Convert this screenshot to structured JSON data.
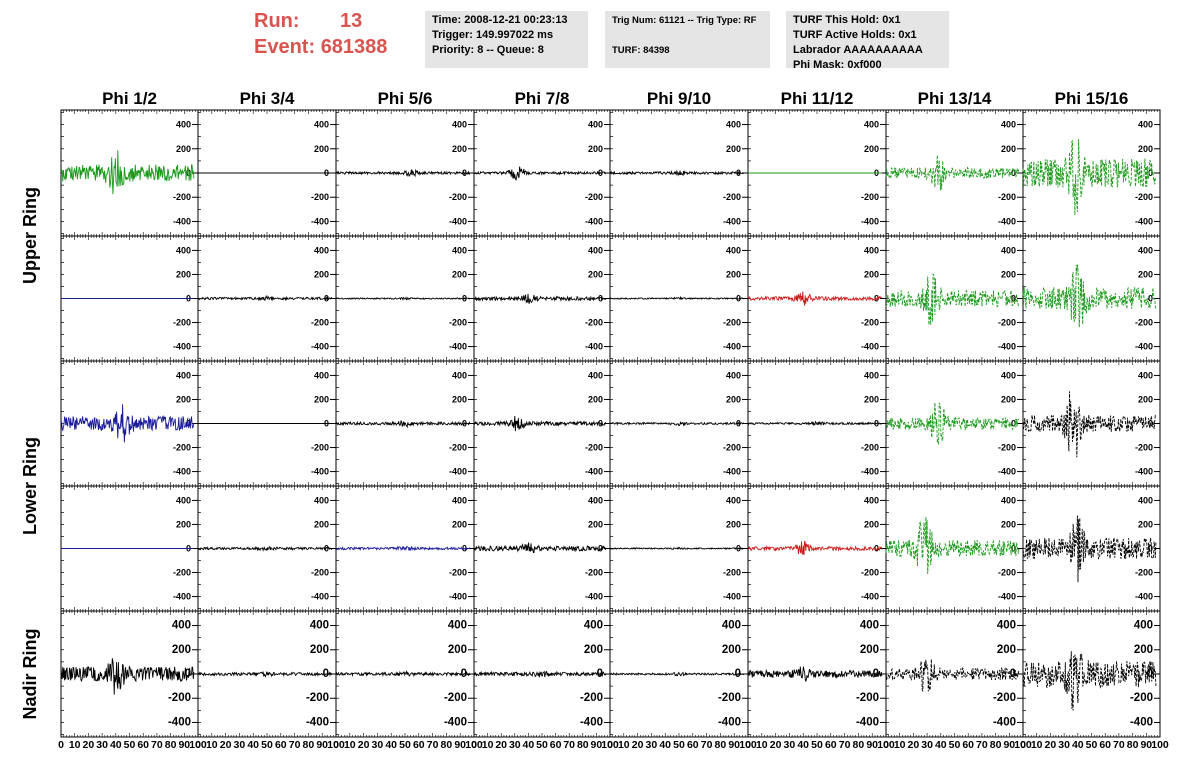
{
  "header": {
    "run_label": "Run:",
    "run_value": "13",
    "event_label": "Event:",
    "event_value": "681388",
    "time_box": [
      "Time: 2008-12-21 00:23:13",
      "Trigger: 149.997022 ms",
      "Priority: 8 -- Queue: 8"
    ],
    "trig_box": [
      "Trig Num: 61121 -- Trig Type: RF",
      "",
      "TURF: 84398"
    ],
    "turf_box": [
      "TURF This Hold: 0x1",
      "TURF Active Holds: 0x1",
      "Labrador AAAAAAAAAA",
      "Phi Mask: 0xf000"
    ]
  },
  "colors": {
    "header_red": "#d9534f",
    "info_bg": "#e5e5e5",
    "green": "#1a9a1a",
    "blue": "#1a1a9a",
    "red": "#cc1a1a",
    "black": "#000000"
  },
  "chart_data": {
    "type": "line",
    "columns": [
      "Phi 1/2",
      "Phi 3/4",
      "Phi 5/6",
      "Phi 7/8",
      "Phi 9/10",
      "Phi 11/12",
      "Phi 13/14",
      "Phi 15/16"
    ],
    "row_labels": [
      "Upper Ring",
      "Lower Ring",
      "Nadir Ring"
    ],
    "rows": 5,
    "ylim": [
      -520,
      520
    ],
    "yticks": [
      -400,
      -200,
      0,
      200,
      400
    ],
    "ytick_labels": [
      "-400",
      "-200",
      "0",
      "200",
      "400"
    ],
    "xlim": [
      0,
      100
    ],
    "xticks": [
      0,
      10,
      20,
      30,
      40,
      50,
      60,
      70,
      80,
      90,
      100
    ],
    "xtick_labels": [
      "0",
      "10",
      "20",
      "30",
      "40",
      "50",
      "60",
      "70",
      "80",
      "90",
      "100"
    ],
    "waveform_xrange": [
      0,
      97
    ],
    "panels": [
      {
        "row": 0,
        "col": 0,
        "color": "green",
        "amp": 70,
        "burst": 130,
        "burst_x": 40,
        "dashed": false
      },
      {
        "row": 0,
        "col": 1,
        "color": "black",
        "amp": 0,
        "burst": 0,
        "burst_x": 0,
        "dashed": false
      },
      {
        "row": 0,
        "col": 2,
        "color": "black",
        "amp": 10,
        "burst": 20,
        "burst_x": 55,
        "dashed": false
      },
      {
        "row": 0,
        "col": 3,
        "color": "black",
        "amp": 10,
        "burst": 60,
        "burst_x": 32,
        "dashed": false
      },
      {
        "row": 0,
        "col": 4,
        "color": "black",
        "amp": 10,
        "burst": 10,
        "burst_x": 50,
        "dashed": false
      },
      {
        "row": 0,
        "col": 5,
        "color": "green",
        "amp": 0,
        "burst": 0,
        "burst_x": 0,
        "dashed": false
      },
      {
        "row": 0,
        "col": 6,
        "color": "green",
        "amp": 45,
        "burst": 120,
        "burst_x": 38,
        "dashed": true
      },
      {
        "row": 0,
        "col": 7,
        "color": "green",
        "amp": 120,
        "burst": 230,
        "burst_x": 38,
        "dashed": true
      },
      {
        "row": 1,
        "col": 0,
        "color": "blue",
        "amp": 0,
        "burst": 0,
        "burst_x": 0,
        "dashed": false
      },
      {
        "row": 1,
        "col": 1,
        "color": "black",
        "amp": 10,
        "burst": 10,
        "burst_x": 50,
        "dashed": false
      },
      {
        "row": 1,
        "col": 2,
        "color": "black",
        "amp": 5,
        "burst": 5,
        "burst_x": 50,
        "dashed": false
      },
      {
        "row": 1,
        "col": 3,
        "color": "black",
        "amp": 15,
        "burst": 30,
        "burst_x": 40,
        "dashed": false
      },
      {
        "row": 1,
        "col": 4,
        "color": "black",
        "amp": 5,
        "burst": 5,
        "burst_x": 50,
        "dashed": false
      },
      {
        "row": 1,
        "col": 5,
        "color": "red",
        "amp": 15,
        "burst": 50,
        "burst_x": 40,
        "dashed": false
      },
      {
        "row": 1,
        "col": 6,
        "color": "green",
        "amp": 70,
        "burst": 200,
        "burst_x": 33,
        "dashed": true
      },
      {
        "row": 1,
        "col": 7,
        "color": "green",
        "amp": 90,
        "burst": 220,
        "burst_x": 40,
        "dashed": true
      },
      {
        "row": 2,
        "col": 0,
        "color": "blue",
        "amp": 60,
        "burst": 110,
        "burst_x": 45,
        "dashed": false
      },
      {
        "row": 2,
        "col": 1,
        "color": "black",
        "amp": 0,
        "burst": 0,
        "burst_x": 0,
        "dashed": false
      },
      {
        "row": 2,
        "col": 2,
        "color": "black",
        "amp": 12,
        "burst": 20,
        "burst_x": 50,
        "dashed": false
      },
      {
        "row": 2,
        "col": 3,
        "color": "black",
        "amp": 15,
        "burst": 60,
        "burst_x": 32,
        "dashed": false
      },
      {
        "row": 2,
        "col": 4,
        "color": "black",
        "amp": 8,
        "burst": 10,
        "burst_x": 50,
        "dashed": false
      },
      {
        "row": 2,
        "col": 5,
        "color": "black",
        "amp": 8,
        "burst": 10,
        "burst_x": 50,
        "dashed": false
      },
      {
        "row": 2,
        "col": 6,
        "color": "green",
        "amp": 50,
        "burst": 160,
        "burst_x": 38,
        "dashed": true
      },
      {
        "row": 2,
        "col": 7,
        "color": "black",
        "amp": 70,
        "burst": 300,
        "burst_x": 37,
        "dashed": true
      },
      {
        "row": 3,
        "col": 0,
        "color": "blue",
        "amp": 0,
        "burst": 0,
        "burst_x": 0,
        "dashed": false
      },
      {
        "row": 3,
        "col": 1,
        "color": "black",
        "amp": 10,
        "burst": 10,
        "burst_x": 50,
        "dashed": false
      },
      {
        "row": 3,
        "col": 2,
        "color": "blue",
        "amp": 10,
        "burst": 10,
        "burst_x": 50,
        "dashed": false
      },
      {
        "row": 3,
        "col": 3,
        "color": "black",
        "amp": 20,
        "burst": 30,
        "burst_x": 40,
        "dashed": false
      },
      {
        "row": 3,
        "col": 4,
        "color": "black",
        "amp": 5,
        "burst": 5,
        "burst_x": 50,
        "dashed": false
      },
      {
        "row": 3,
        "col": 5,
        "color": "red",
        "amp": 15,
        "burst": 50,
        "burst_x": 40,
        "dashed": false
      },
      {
        "row": 3,
        "col": 6,
        "color": "green",
        "amp": 70,
        "burst": 250,
        "burst_x": 28,
        "dashed": true
      },
      {
        "row": 3,
        "col": 7,
        "color": "black",
        "amp": 90,
        "burst": 200,
        "burst_x": 40,
        "dashed": true
      },
      {
        "row": 4,
        "col": 0,
        "color": "black",
        "amp": 60,
        "burst": 120,
        "burst_x": 40,
        "dashed": false
      },
      {
        "row": 4,
        "col": 1,
        "color": "black",
        "amp": 12,
        "burst": 12,
        "burst_x": 50,
        "dashed": false
      },
      {
        "row": 4,
        "col": 2,
        "color": "black",
        "amp": 12,
        "burst": 12,
        "burst_x": 50,
        "dashed": false
      },
      {
        "row": 4,
        "col": 3,
        "color": "black",
        "amp": 15,
        "burst": 15,
        "burst_x": 50,
        "dashed": false
      },
      {
        "row": 4,
        "col": 4,
        "color": "black",
        "amp": 8,
        "burst": 8,
        "burst_x": 50,
        "dashed": false
      },
      {
        "row": 4,
        "col": 5,
        "color": "black",
        "amp": 30,
        "burst": 40,
        "burst_x": 40,
        "dashed": false
      },
      {
        "row": 4,
        "col": 6,
        "color": "black",
        "amp": 50,
        "burst": 150,
        "burst_x": 30,
        "dashed": true
      },
      {
        "row": 4,
        "col": 7,
        "color": "black",
        "amp": 110,
        "burst": 250,
        "burst_x": 38,
        "dashed": true
      }
    ]
  }
}
